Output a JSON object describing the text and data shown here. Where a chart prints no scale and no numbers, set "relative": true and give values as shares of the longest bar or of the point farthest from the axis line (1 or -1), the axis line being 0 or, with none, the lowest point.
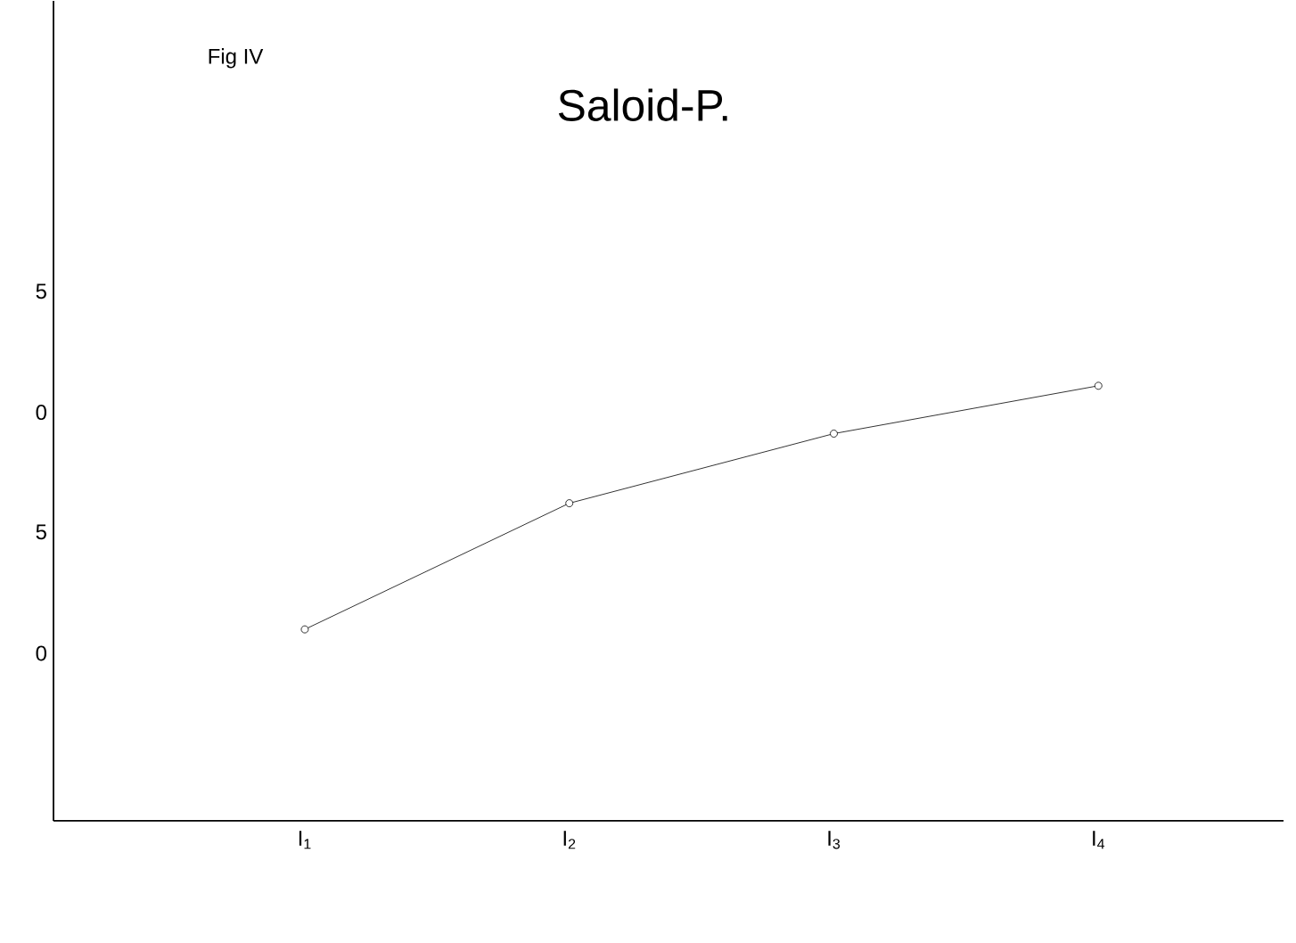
{
  "chart_data": {
    "type": "line",
    "title": "Saloid-P.",
    "relative": true,
    "annotations": [
      "Fig IV",
      "5",
      "0",
      "5",
      "0"
    ],
    "categories": [
      "I$_{1}$",
      "I$_{2}$",
      "I$_{3}$",
      "I$_{4}$"
    ],
    "series": [
      {
        "color": "#000000",
        "values": [
          0.44,
          0.73,
          0.89,
          1.0
        ]
      }
    ],
    "marker": "circle",
    "line_style": "solid",
    "grid": false
  }
}
